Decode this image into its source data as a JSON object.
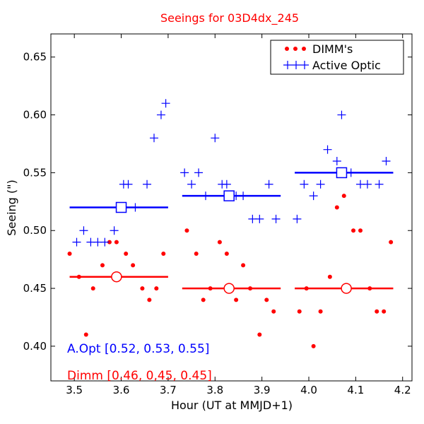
{
  "chart_data": {
    "type": "scatter",
    "title": "Seeings for 03D4dx_245",
    "xlabel": "Hour (UT at MMJD+1)",
    "ylabel": "Seeing (\")",
    "xlim": [
      3.45,
      4.22
    ],
    "ylim": [
      0.37,
      0.67
    ],
    "x_ticks": [
      3.5,
      3.6,
      3.7,
      3.8,
      3.9,
      4.0,
      4.1,
      4.2
    ],
    "x_tick_labels": [
      "3.5",
      "3.6",
      "3.7",
      "3.8",
      "3.9",
      "4.0",
      "4.1",
      "4.2"
    ],
    "y_ticks": [
      0.4,
      0.45,
      0.5,
      0.55,
      0.6,
      0.65
    ],
    "y_tick_labels": [
      "0.40",
      "0.45",
      "0.50",
      "0.55",
      "0.60",
      "0.65"
    ],
    "grid": false,
    "legend_position": "top-right",
    "colors": {
      "dimm": "#ff0000",
      "aopt": "#0000ff",
      "title": "#ff0000"
    },
    "series": [
      {
        "name": "DIMM's",
        "marker": "dot",
        "points": [
          [
            3.49,
            0.48
          ],
          [
            3.51,
            0.46
          ],
          [
            3.525,
            0.41
          ],
          [
            3.54,
            0.45
          ],
          [
            3.56,
            0.47
          ],
          [
            3.575,
            0.49
          ],
          [
            3.59,
            0.49
          ],
          [
            3.61,
            0.48
          ],
          [
            3.625,
            0.47
          ],
          [
            3.645,
            0.45
          ],
          [
            3.66,
            0.44
          ],
          [
            3.675,
            0.45
          ],
          [
            3.69,
            0.48
          ],
          [
            3.74,
            0.5
          ],
          [
            3.76,
            0.48
          ],
          [
            3.775,
            0.44
          ],
          [
            3.79,
            0.45
          ],
          [
            3.81,
            0.49
          ],
          [
            3.825,
            0.48
          ],
          [
            3.845,
            0.44
          ],
          [
            3.86,
            0.47
          ],
          [
            3.875,
            0.45
          ],
          [
            3.895,
            0.41
          ],
          [
            3.91,
            0.44
          ],
          [
            3.925,
            0.43
          ],
          [
            3.98,
            0.43
          ],
          [
            3.995,
            0.45
          ],
          [
            4.01,
            0.4
          ],
          [
            4.025,
            0.43
          ],
          [
            4.045,
            0.46
          ],
          [
            4.06,
            0.52
          ],
          [
            4.075,
            0.53
          ],
          [
            4.095,
            0.5
          ],
          [
            4.11,
            0.5
          ],
          [
            4.13,
            0.45
          ],
          [
            4.145,
            0.43
          ],
          [
            4.16,
            0.43
          ],
          [
            4.175,
            0.49
          ]
        ]
      },
      {
        "name": "Active Optic",
        "marker": "plus",
        "points": [
          [
            3.505,
            0.49
          ],
          [
            3.52,
            0.5
          ],
          [
            3.535,
            0.49
          ],
          [
            3.55,
            0.49
          ],
          [
            3.565,
            0.49
          ],
          [
            3.585,
            0.5
          ],
          [
            3.605,
            0.54
          ],
          [
            3.615,
            0.54
          ],
          [
            3.63,
            0.52
          ],
          [
            3.655,
            0.54
          ],
          [
            3.67,
            0.58
          ],
          [
            3.685,
            0.6
          ],
          [
            3.695,
            0.61
          ],
          [
            3.735,
            0.55
          ],
          [
            3.75,
            0.54
          ],
          [
            3.765,
            0.55
          ],
          [
            3.78,
            0.53
          ],
          [
            3.8,
            0.58
          ],
          [
            3.815,
            0.54
          ],
          [
            3.825,
            0.54
          ],
          [
            3.845,
            0.53
          ],
          [
            3.86,
            0.53
          ],
          [
            3.88,
            0.51
          ],
          [
            3.895,
            0.51
          ],
          [
            3.915,
            0.54
          ],
          [
            3.93,
            0.51
          ],
          [
            3.975,
            0.51
          ],
          [
            3.99,
            0.54
          ],
          [
            4.01,
            0.53
          ],
          [
            4.025,
            0.54
          ],
          [
            4.04,
            0.57
          ],
          [
            4.06,
            0.56
          ],
          [
            4.07,
            0.6
          ],
          [
            4.09,
            0.55
          ],
          [
            4.11,
            0.54
          ],
          [
            4.125,
            0.54
          ],
          [
            4.15,
            0.54
          ],
          [
            4.165,
            0.56
          ]
        ]
      }
    ],
    "segments": [
      {
        "series": "Active Optic",
        "x_start": 3.49,
        "x_end": 3.7,
        "value": 0.52,
        "marker_x": 3.6,
        "marker": "open-square"
      },
      {
        "series": "Active Optic",
        "x_start": 3.73,
        "x_end": 3.94,
        "value": 0.53,
        "marker_x": 3.83,
        "marker": "open-square"
      },
      {
        "series": "Active Optic",
        "x_start": 3.97,
        "x_end": 4.18,
        "value": 0.55,
        "marker_x": 4.07,
        "marker": "open-square"
      },
      {
        "series": "DIMM's",
        "x_start": 3.49,
        "x_end": 3.7,
        "value": 0.46,
        "marker_x": 3.59,
        "marker": "open-circle"
      },
      {
        "series": "DIMM's",
        "x_start": 3.73,
        "x_end": 3.94,
        "value": 0.45,
        "marker_x": 3.83,
        "marker": "open-circle"
      },
      {
        "series": "DIMM's",
        "x_start": 3.97,
        "x_end": 4.18,
        "value": 0.45,
        "marker_x": 4.08,
        "marker": "open-circle"
      }
    ],
    "annotations": [
      {
        "text": "A.Opt [0.52, 0.53, 0.55]",
        "color": "#0000ff"
      },
      {
        "text": "Dimm [0.46, 0,45, 0.45]",
        "color": "#ff0000"
      }
    ]
  }
}
